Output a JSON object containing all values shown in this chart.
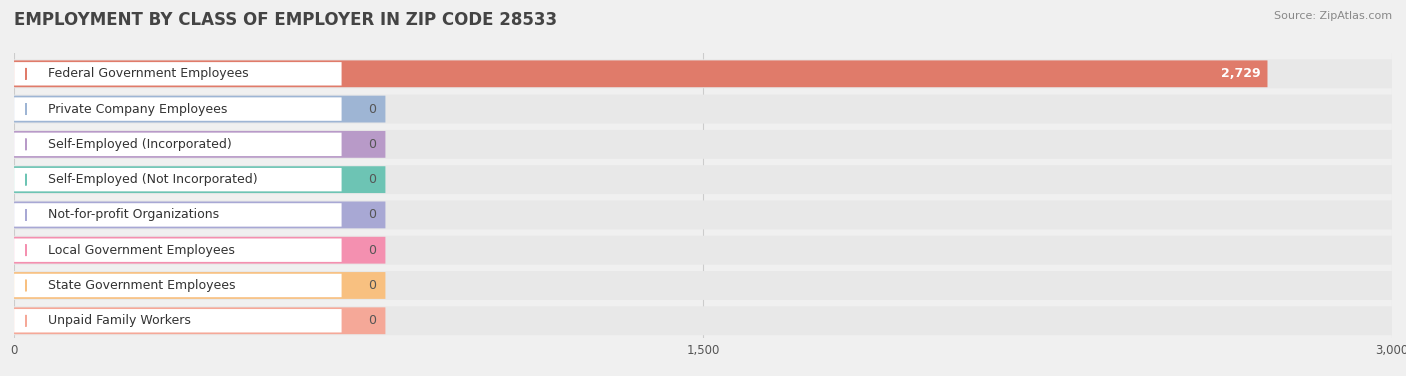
{
  "title": "EMPLOYMENT BY CLASS OF EMPLOYER IN ZIP CODE 28533",
  "source": "Source: ZipAtlas.com",
  "categories": [
    "Federal Government Employees",
    "Private Company Employees",
    "Self-Employed (Incorporated)",
    "Self-Employed (Not Incorporated)",
    "Not-for-profit Organizations",
    "Local Government Employees",
    "State Government Employees",
    "Unpaid Family Workers"
  ],
  "values": [
    2729,
    0,
    0,
    0,
    0,
    0,
    0,
    0
  ],
  "bar_colors": [
    "#e07b6a",
    "#9eb5d4",
    "#b89ac8",
    "#6dc4b4",
    "#a8a8d4",
    "#f490b0",
    "#f8c080",
    "#f5a898"
  ],
  "xlim": [
    0,
    3000
  ],
  "xticks": [
    0,
    1500,
    3000
  ],
  "xtick_labels": [
    "0",
    "1,500",
    "3,000"
  ],
  "background_color": "#f0f0f0",
  "row_bg_color": "#e8e8e8",
  "bar_bg_inner": "#ffffff",
  "grid_color": "#cccccc",
  "title_fontsize": 12,
  "label_fontsize": 9,
  "source_fontsize": 8
}
